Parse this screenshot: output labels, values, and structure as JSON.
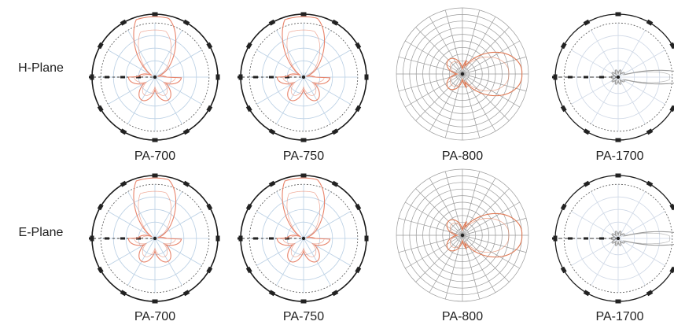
{
  "figure": {
    "rows": [
      {
        "label": "H-Plane",
        "panels": [
          {
            "caption": "PA-700",
            "style": "polar",
            "pattern": "petal_up",
            "color": "#e8836a"
          },
          {
            "caption": "PA-750",
            "style": "polar",
            "pattern": "petal_up",
            "color": "#e8836a"
          },
          {
            "caption": "PA-800",
            "style": "grid",
            "pattern": "lobe_right",
            "color": "#e07a55"
          },
          {
            "caption": "PA-1700",
            "style": "polar_light",
            "pattern": "narrow_right",
            "color": "#9a9a9a"
          }
        ]
      },
      {
        "label": "E-Plane",
        "panels": [
          {
            "caption": "PA-700",
            "style": "polar",
            "pattern": "petal_up",
            "color": "#e8836a"
          },
          {
            "caption": "PA-750",
            "style": "polar",
            "pattern": "petal_up",
            "color": "#e8836a"
          },
          {
            "caption": "PA-800",
            "style": "grid",
            "pattern": "lobe_right",
            "color": "#e07a55"
          },
          {
            "caption": "PA-1700",
            "style": "polar_light",
            "pattern": "narrow_right",
            "color": "#9a9a9a"
          }
        ]
      }
    ]
  },
  "chart_data": {
    "type": "polar",
    "grid": true,
    "panels": [
      {
        "caption": "PA-700",
        "plane": "H-Plane"
      },
      {
        "caption": "PA-750",
        "plane": "H-Plane"
      },
      {
        "caption": "PA-800",
        "plane": "H-Plane"
      },
      {
        "caption": "PA-1700",
        "plane": "H-Plane"
      },
      {
        "caption": "PA-700",
        "plane": "E-Plane"
      },
      {
        "caption": "PA-750",
        "plane": "E-Plane"
      },
      {
        "caption": "PA-800",
        "plane": "E-Plane"
      },
      {
        "caption": "PA-1700",
        "plane": "E-Plane"
      }
    ]
  }
}
